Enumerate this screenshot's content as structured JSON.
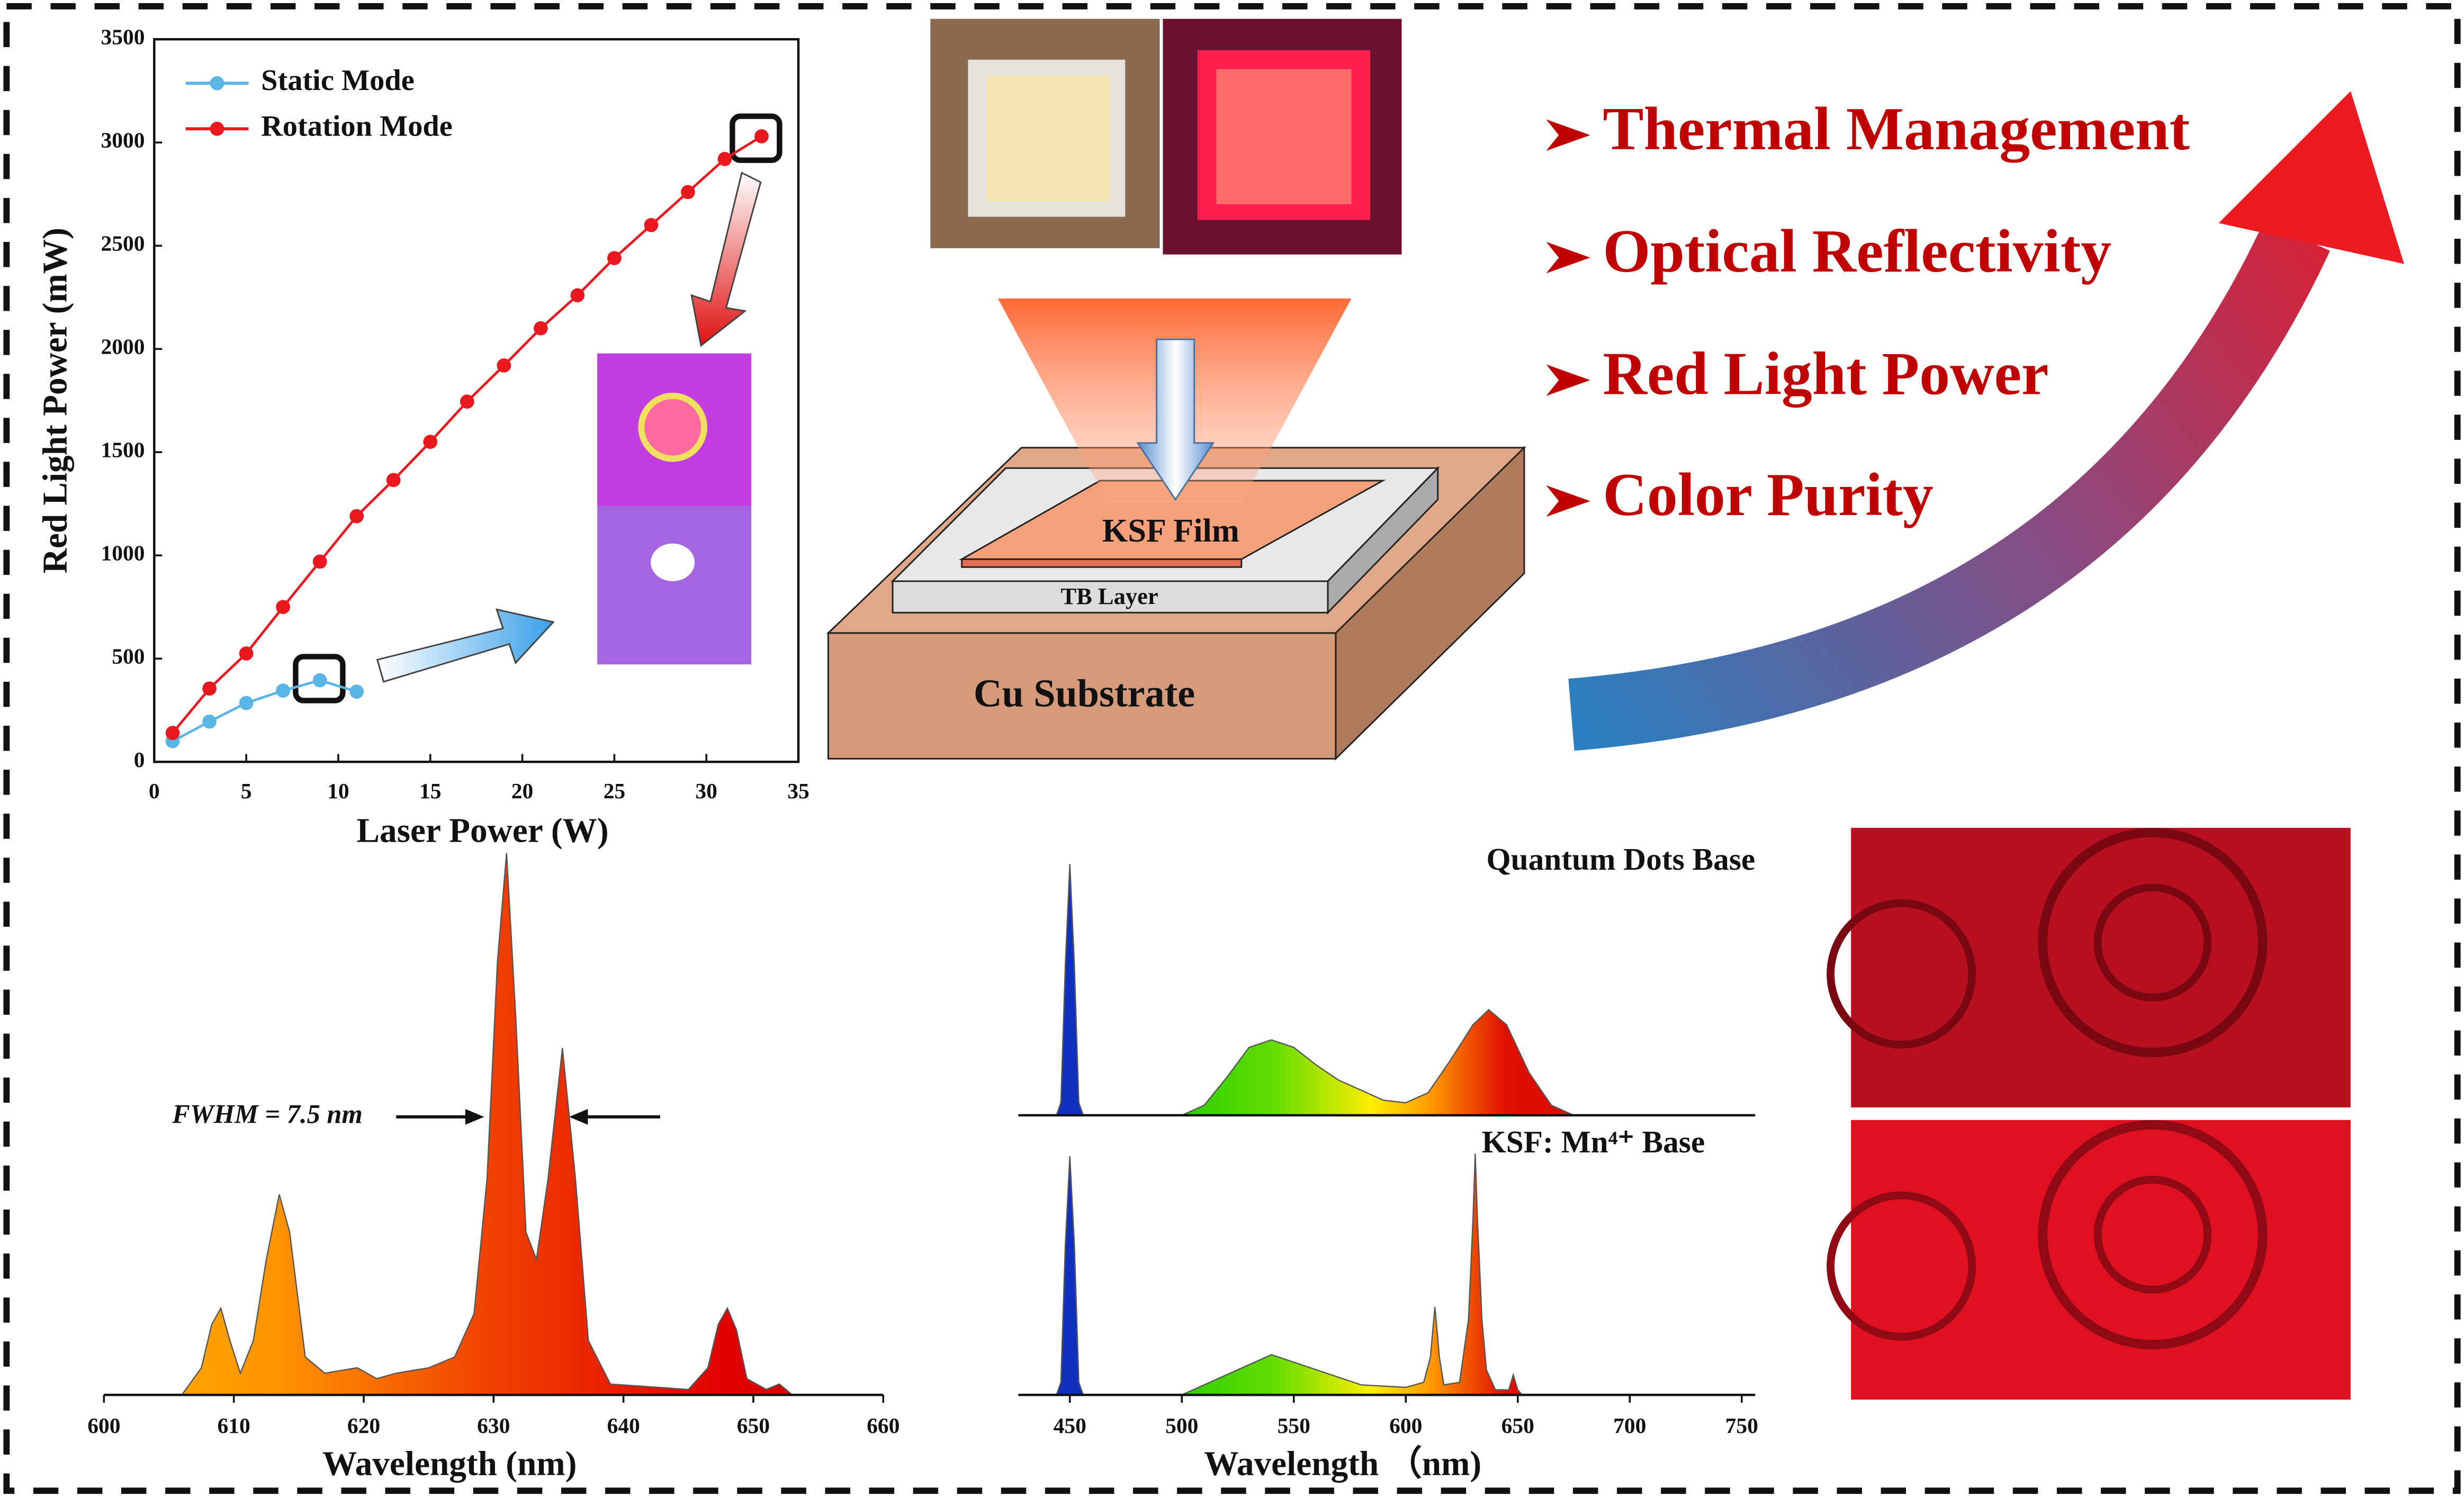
{
  "chart_data": [
    {
      "type": "line",
      "xlabel": "Laser Power (W)",
      "ylabel": "Red Light Power (mW)",
      "xlim": [
        0,
        35
      ],
      "xticks": [
        0,
        5,
        10,
        15,
        20,
        25,
        30,
        35
      ],
      "ylim": [
        0,
        3500
      ],
      "yticks": [
        0,
        500,
        1000,
        1500,
        2000,
        2500,
        3000,
        3500
      ],
      "legend": "upper left",
      "series": [
        {
          "name": "Static Mode",
          "color": "#5ab4e5",
          "x": [
            1,
            3,
            5,
            7,
            9,
            11
          ],
          "values": [
            100,
            195,
            285,
            345,
            395,
            340
          ]
        },
        {
          "name": "Rotation Mode",
          "color": "#e8181e",
          "x": [
            1,
            3,
            5,
            7,
            9,
            11,
            13,
            15,
            17,
            19,
            21,
            23,
            25,
            27,
            29,
            31,
            33
          ],
          "values": [
            140,
            355,
            525,
            750,
            970,
            1190,
            1365,
            1550,
            1745,
            1920,
            2100,
            2260,
            2440,
            2600,
            2760,
            2920,
            3030
          ]
        }
      ]
    },
    {
      "type": "area",
      "xlabel": "Wavelength (nm)",
      "annotation": "FWHM = 7.5 nm",
      "xlim": [
        600,
        660
      ],
      "xticks": [
        600,
        610,
        620,
        630,
        640,
        650,
        660
      ],
      "series": [
        {
          "x": [
            600,
            606,
            607.5,
            608.3,
            609,
            609.7,
            610.5,
            611.5,
            612.5,
            613.5,
            614.3,
            615.5,
            617,
            619.5,
            621,
            622.5,
            625,
            627,
            628.5,
            629.5,
            630.3,
            631,
            631.7,
            632.5,
            633.3,
            634.2,
            635.3,
            636.3,
            637.3,
            639,
            645,
            646.5,
            647.3,
            648,
            648.7,
            649.5,
            651,
            652,
            653,
            660
          ],
          "values": [
            0,
            0,
            0.05,
            0.13,
            0.16,
            0.1,
            0.04,
            0.1,
            0.25,
            0.37,
            0.3,
            0.07,
            0.04,
            0.05,
            0.03,
            0.04,
            0.05,
            0.07,
            0.15,
            0.4,
            0.8,
            1.0,
            0.7,
            0.3,
            0.25,
            0.4,
            0.64,
            0.4,
            0.1,
            0.02,
            0.01,
            0.05,
            0.13,
            0.16,
            0.12,
            0.03,
            0.01,
            0.02,
            0,
            0
          ]
        }
      ]
    },
    {
      "type": "area",
      "xlabel": "Wavelength （nm)",
      "xlim": [
        427,
        756
      ],
      "xticks": [
        450,
        500,
        550,
        600,
        650,
        700,
        750
      ],
      "series": [
        {
          "name": "Quantum Dots Base",
          "x": [
            427,
            444,
            446,
            448,
            450,
            452,
            454,
            456,
            500,
            510,
            520,
            530,
            540,
            550,
            560,
            570,
            580,
            590,
            600,
            610,
            620,
            630,
            637,
            645,
            655,
            665,
            675,
            756
          ],
          "values": [
            0,
            0,
            0.05,
            0.6,
            1.0,
            0.6,
            0.05,
            0,
            0,
            0.04,
            0.15,
            0.27,
            0.3,
            0.27,
            0.2,
            0.14,
            0.1,
            0.06,
            0.05,
            0.09,
            0.22,
            0.36,
            0.42,
            0.36,
            0.17,
            0.04,
            0,
            0
          ]
        },
        {
          "name": "KSF: Mn⁴⁺ Base",
          "x": [
            427,
            444,
            446,
            448,
            450,
            452,
            454,
            456,
            500,
            520,
            540,
            560,
            580,
            600,
            608,
            611,
            613,
            615,
            617,
            624,
            628,
            630,
            631,
            632,
            634,
            636,
            640,
            646,
            648,
            650,
            652,
            756
          ],
          "values": [
            0,
            0,
            0.05,
            0.6,
            0.95,
            0.6,
            0.05,
            0,
            0,
            0.08,
            0.16,
            0.1,
            0.04,
            0.03,
            0.05,
            0.15,
            0.35,
            0.15,
            0.04,
            0.05,
            0.3,
            0.7,
            0.96,
            0.7,
            0.3,
            0.1,
            0.02,
            0.02,
            0.08,
            0.02,
            0,
            0
          ]
        }
      ]
    }
  ],
  "diagram": {
    "layers": [
      "KSF Film",
      "TB Layer",
      "Cu Substrate"
    ]
  },
  "highlights": [
    "Thermal Management",
    "Optical Reflectivity",
    "Red Light Power",
    "Color Purity"
  ]
}
